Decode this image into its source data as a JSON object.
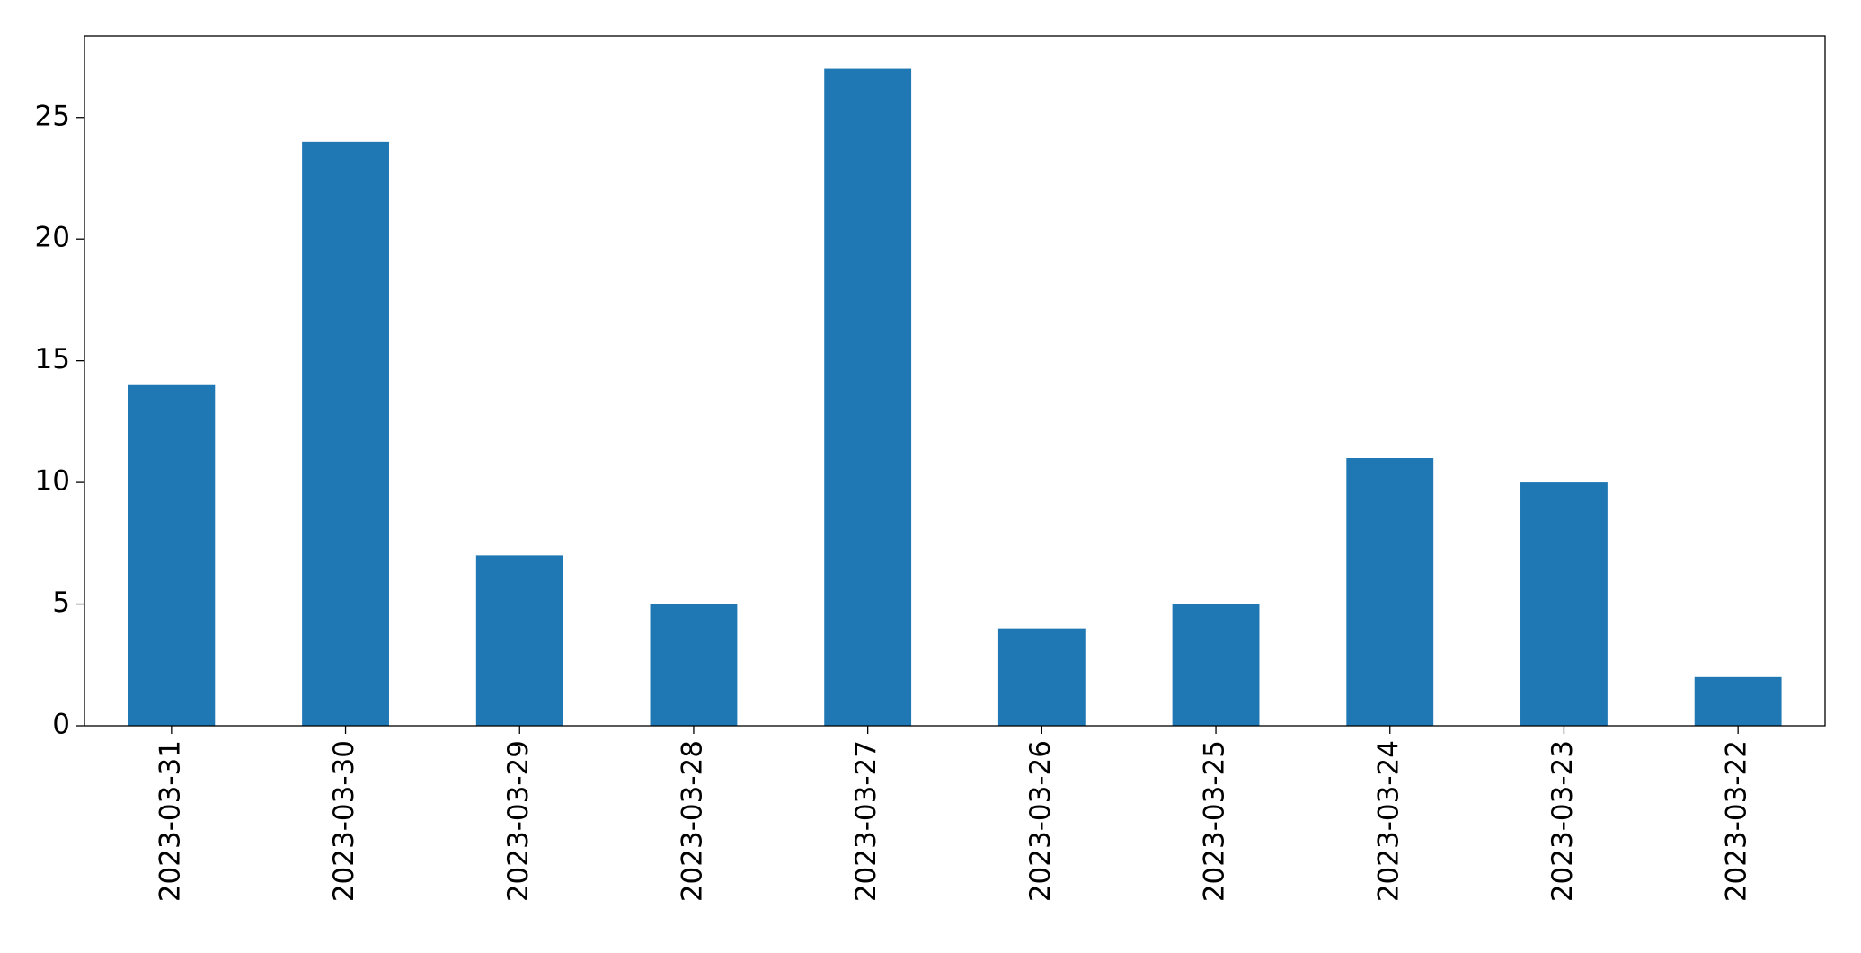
{
  "chart_data": {
    "type": "bar",
    "categories": [
      "2023-03-31",
      "2023-03-30",
      "2023-03-29",
      "2023-03-28",
      "2023-03-27",
      "2023-03-26",
      "2023-03-25",
      "2023-03-24",
      "2023-03-23",
      "2023-03-22"
    ],
    "values": [
      14,
      24,
      7,
      5,
      27,
      4,
      5,
      11,
      10,
      2
    ],
    "color": "#1f77b4",
    "ylim": [
      0,
      28.35
    ],
    "yticks": [
      0,
      5,
      10,
      15,
      20,
      25
    ],
    "grid": false
  }
}
